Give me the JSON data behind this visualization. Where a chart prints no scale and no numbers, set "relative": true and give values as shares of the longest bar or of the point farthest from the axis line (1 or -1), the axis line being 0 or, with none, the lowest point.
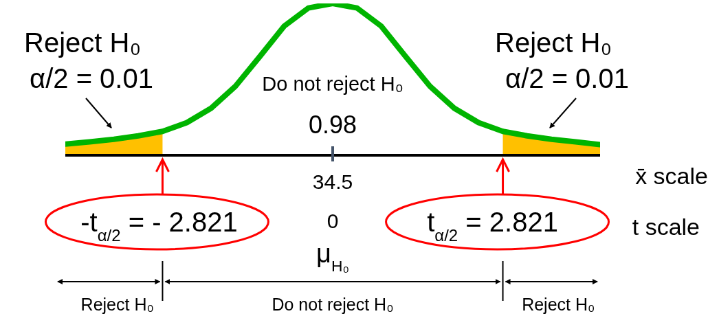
{
  "chart_data": {
    "type": "line",
    "relative": true,
    "categories": [
      null,
      null,
      null,
      null,
      null,
      null,
      null,
      null,
      null,
      null,
      null,
      null,
      null,
      null,
      null,
      null,
      null,
      null,
      null,
      null,
      null,
      null,
      null
    ],
    "series": [
      {
        "type": "area",
        "color": "#ffc000",
        "values": [
          0.074,
          0.088,
          0.105,
          0.128,
          0.157,
          null,
          null,
          null,
          null,
          null,
          null,
          null,
          null,
          null,
          null,
          null,
          null,
          null,
          0.157,
          0.128,
          0.105,
          0.088,
          0.07
        ]
      },
      {
        "color": "#00b400",
        "values": [
          0.074,
          0.088,
          0.105,
          0.128,
          0.157,
          0.215,
          0.31,
          0.455,
          0.65,
          0.85,
          0.97,
          1,
          0.97,
          0.85,
          0.65,
          0.455,
          0.31,
          0.215,
          0.157,
          0.128,
          0.105,
          0.088,
          0.07
        ]
      }
    ],
    "annotations": [
      "Reject H₀",
      "α/2 = 0.01",
      "Reject H₀",
      "α/2 = 0.01",
      "Do not reject H₀",
      "0.98",
      "34.5",
      "x̄ scale",
      "-t$_{α/2}$ = - 2.821",
      "0",
      "t$_{α/2}$ = 2.821",
      "t scale",
      "μ$_{H₀}$",
      "Reject H₀",
      "Do not reject H₀",
      "Reject H₀"
    ]
  }
}
